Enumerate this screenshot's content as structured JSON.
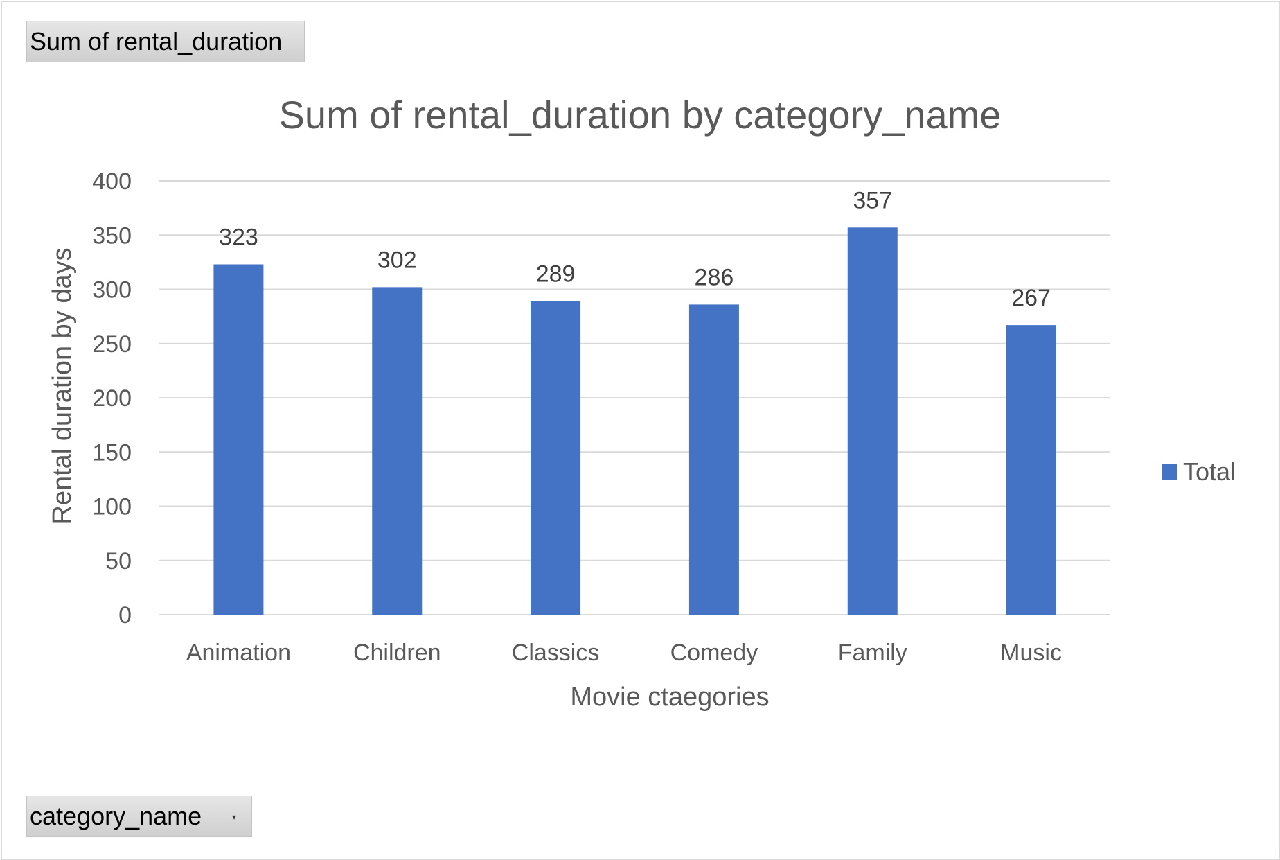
{
  "pivot": {
    "value_field_label": "Sum of rental_duration",
    "axis_field_label": "category_name"
  },
  "colors": {
    "bar": "#4472C4",
    "grid": "#d9d9d9",
    "text": "#595959"
  },
  "chart_data": {
    "type": "bar",
    "title": "Sum of rental_duration by category_name",
    "xlabel": "Movie ctaegories",
    "ylabel": "Rental duration by days",
    "categories": [
      "Animation",
      "Children",
      "Classics",
      "Comedy",
      "Family",
      "Music"
    ],
    "series": [
      {
        "name": "Total",
        "values": [
          323,
          302,
          289,
          286,
          357,
          267
        ]
      }
    ],
    "ylim": [
      0,
      400
    ],
    "yticks": [
      0,
      50,
      100,
      150,
      200,
      250,
      300,
      350,
      400
    ],
    "data_labels": true,
    "grid": true,
    "legend_position": "right"
  }
}
